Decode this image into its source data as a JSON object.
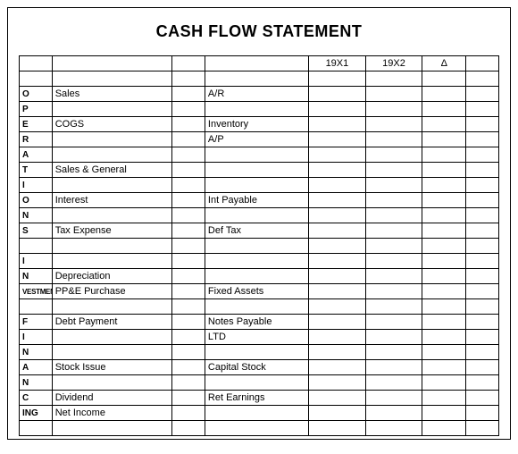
{
  "title": "CASH FLOW STATEMENT",
  "headers": {
    "y1": "19X1",
    "y2": "19X2",
    "delta": "Δ"
  },
  "labels": [
    "O",
    "P",
    "E",
    "R",
    "A",
    "T",
    "I",
    "O",
    "N",
    "S",
    "",
    "I",
    "N",
    "VESTMENT",
    "",
    "F",
    "I",
    "N",
    "A",
    "N",
    "C",
    "ING",
    ""
  ],
  "rows": [
    {
      "item": "",
      "detail": ""
    },
    {
      "item": "Sales",
      "detail": "A/R"
    },
    {
      "item": "",
      "detail": ""
    },
    {
      "item": "COGS",
      "detail": "Inventory"
    },
    {
      "item": "",
      "detail": "A/P"
    },
    {
      "item": "",
      "detail": ""
    },
    {
      "item": "Sales & General",
      "detail": ""
    },
    {
      "item": "",
      "detail": ""
    },
    {
      "item": "Interest",
      "detail": "Int Payable"
    },
    {
      "item": "",
      "detail": ""
    },
    {
      "item": "Tax Expense",
      "detail": "Def Tax"
    },
    {
      "item": "",
      "detail": ""
    },
    {
      "item": "",
      "detail": ""
    },
    {
      "item": "Depreciation",
      "detail": ""
    },
    {
      "item": "PP&E Purchase",
      "detail": "Fixed Assets"
    },
    {
      "item": "",
      "detail": ""
    },
    {
      "item": "Debt Payment",
      "detail": "Notes Payable"
    },
    {
      "item": "",
      "detail": "LTD"
    },
    {
      "item": "",
      "detail": ""
    },
    {
      "item": "Stock Issue",
      "detail": "Capital Stock"
    },
    {
      "item": "",
      "detail": ""
    },
    {
      "item": "Dividend",
      "detail": "Ret Earnings"
    },
    {
      "item": "Net Income",
      "detail": ""
    },
    {
      "item": "",
      "detail": ""
    }
  ]
}
